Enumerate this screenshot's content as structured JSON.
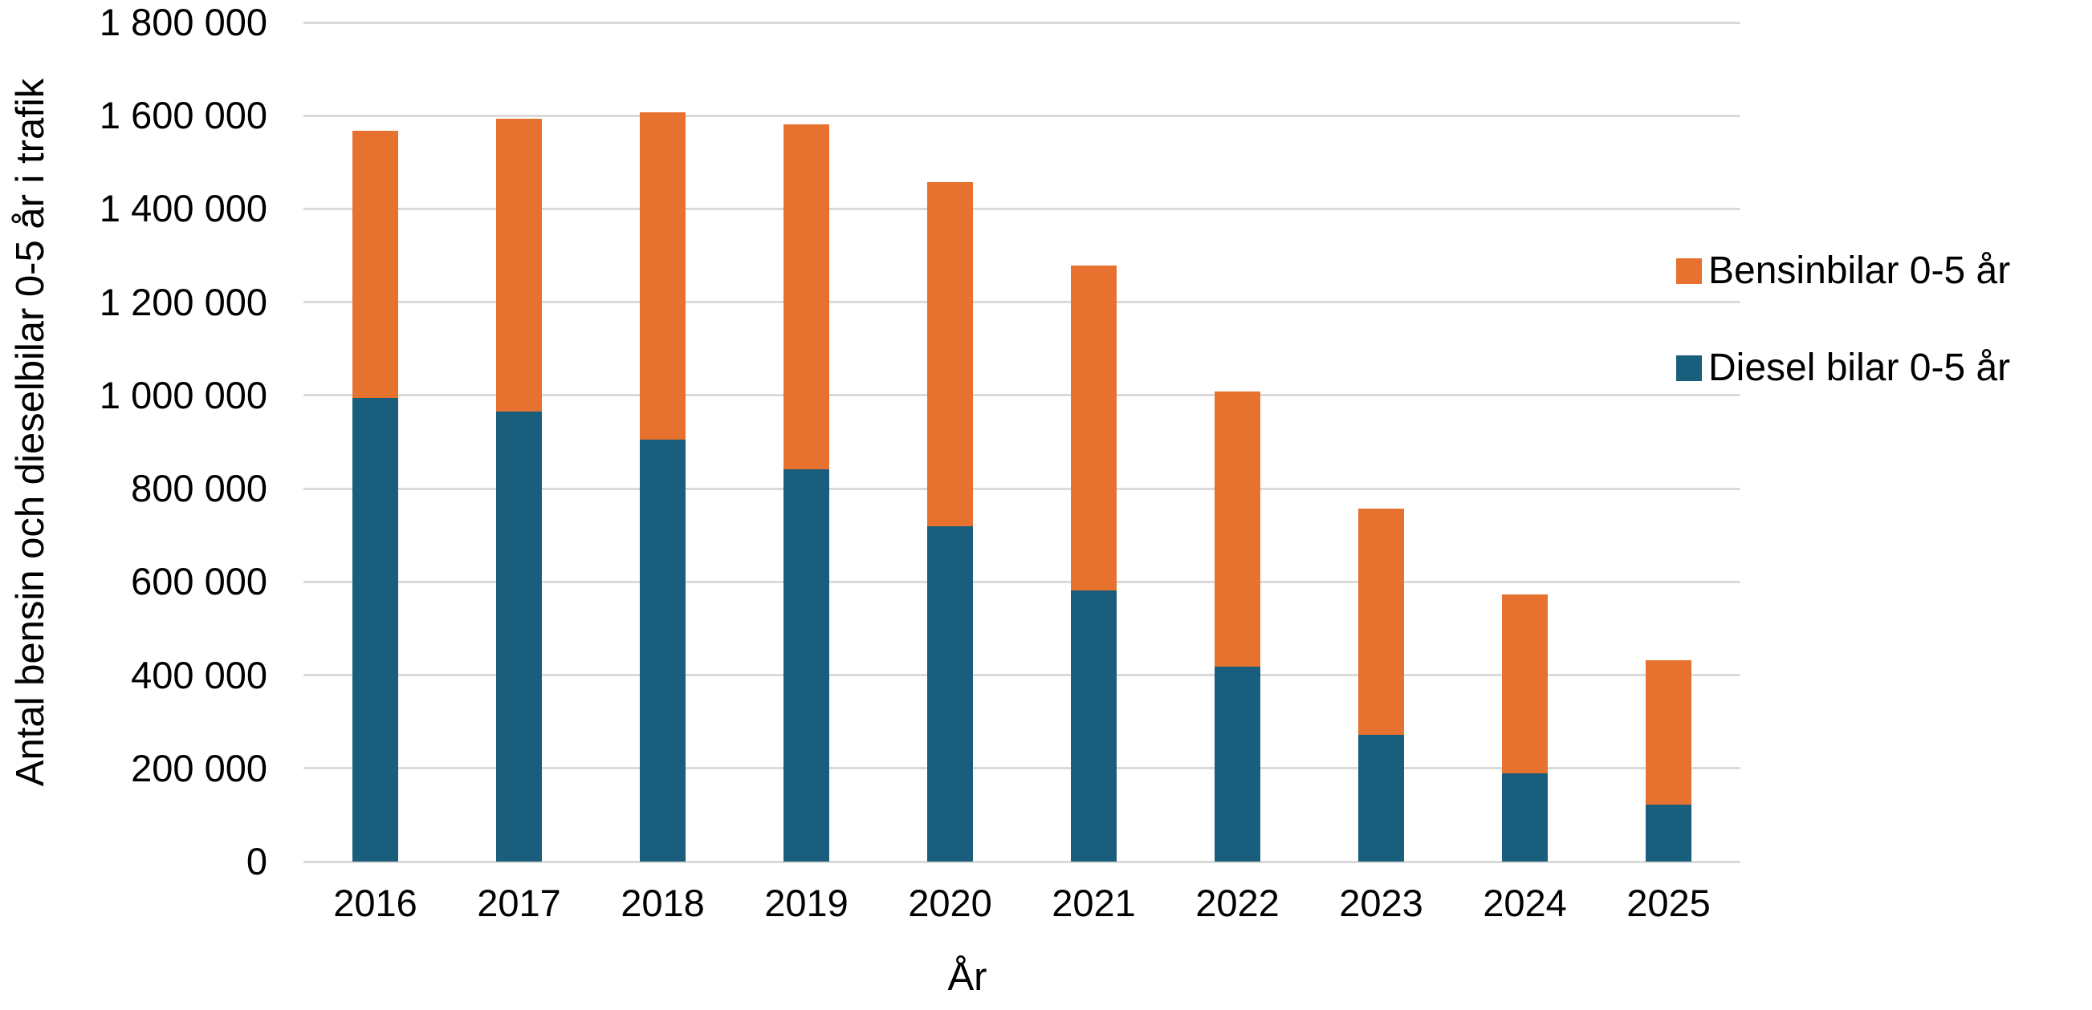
{
  "figure": {
    "y_axis_title": "Antal bensin och dieselbilar 0-5 år i trafik",
    "x_axis_title": "År",
    "background_color": "#FFFFFF",
    "gridline_color": "#DADADA"
  },
  "legend": {
    "position": "right",
    "entries": [
      {
        "label": "Bensinbilar 0-5 år",
        "color": "#E7722F"
      },
      {
        "label": "Diesel bilar 0-5 år",
        "color": "#1A5E7D"
      }
    ]
  },
  "chart_data": {
    "type": "bar",
    "stacked": true,
    "title": "",
    "xlabel": "År",
    "ylabel": "Antal bensin och dieselbilar 0-5 år i trafik",
    "categories": [
      "2016",
      "2017",
      "2018",
      "2019",
      "2020",
      "2021",
      "2022",
      "2023",
      "2024",
      "2025"
    ],
    "series": [
      {
        "name": "Diesel bilar 0-5 år",
        "color": "#1A5E7D",
        "stack_position": "bottom",
        "values": [
          995000,
          965000,
          905000,
          841000,
          720000,
          582000,
          418000,
          272000,
          190000,
          123000
        ]
      },
      {
        "name": "Bensinbilar 0-5 år",
        "color": "#E7722F",
        "stack_position": "top",
        "values": [
          572000,
          629000,
          703000,
          740000,
          738000,
          696000,
          590000,
          485000,
          383000,
          309000
        ]
      }
    ],
    "stack_totals": [
      1567000,
      1594000,
      1608000,
      1581000,
      1458000,
      1278000,
      1008000,
      757000,
      573000,
      432000
    ],
    "ylim": [
      0,
      1800000
    ],
    "ytick_step": 200000,
    "yticks": [
      {
        "value": 0,
        "label": "0"
      },
      {
        "value": 200000,
        "label": "200 000"
      },
      {
        "value": 400000,
        "label": "400 000"
      },
      {
        "value": 600000,
        "label": "600 000"
      },
      {
        "value": 800000,
        "label": "800 000"
      },
      {
        "value": 1000000,
        "label": "1 000 000"
      },
      {
        "value": 1200000,
        "label": "1 200 000"
      },
      {
        "value": 1400000,
        "label": "1 400 000"
      },
      {
        "value": 1600000,
        "label": "1 600 000"
      },
      {
        "value": 1800000,
        "label": "1 800 000"
      }
    ],
    "grid": "horizontal",
    "legend_position": "right"
  }
}
